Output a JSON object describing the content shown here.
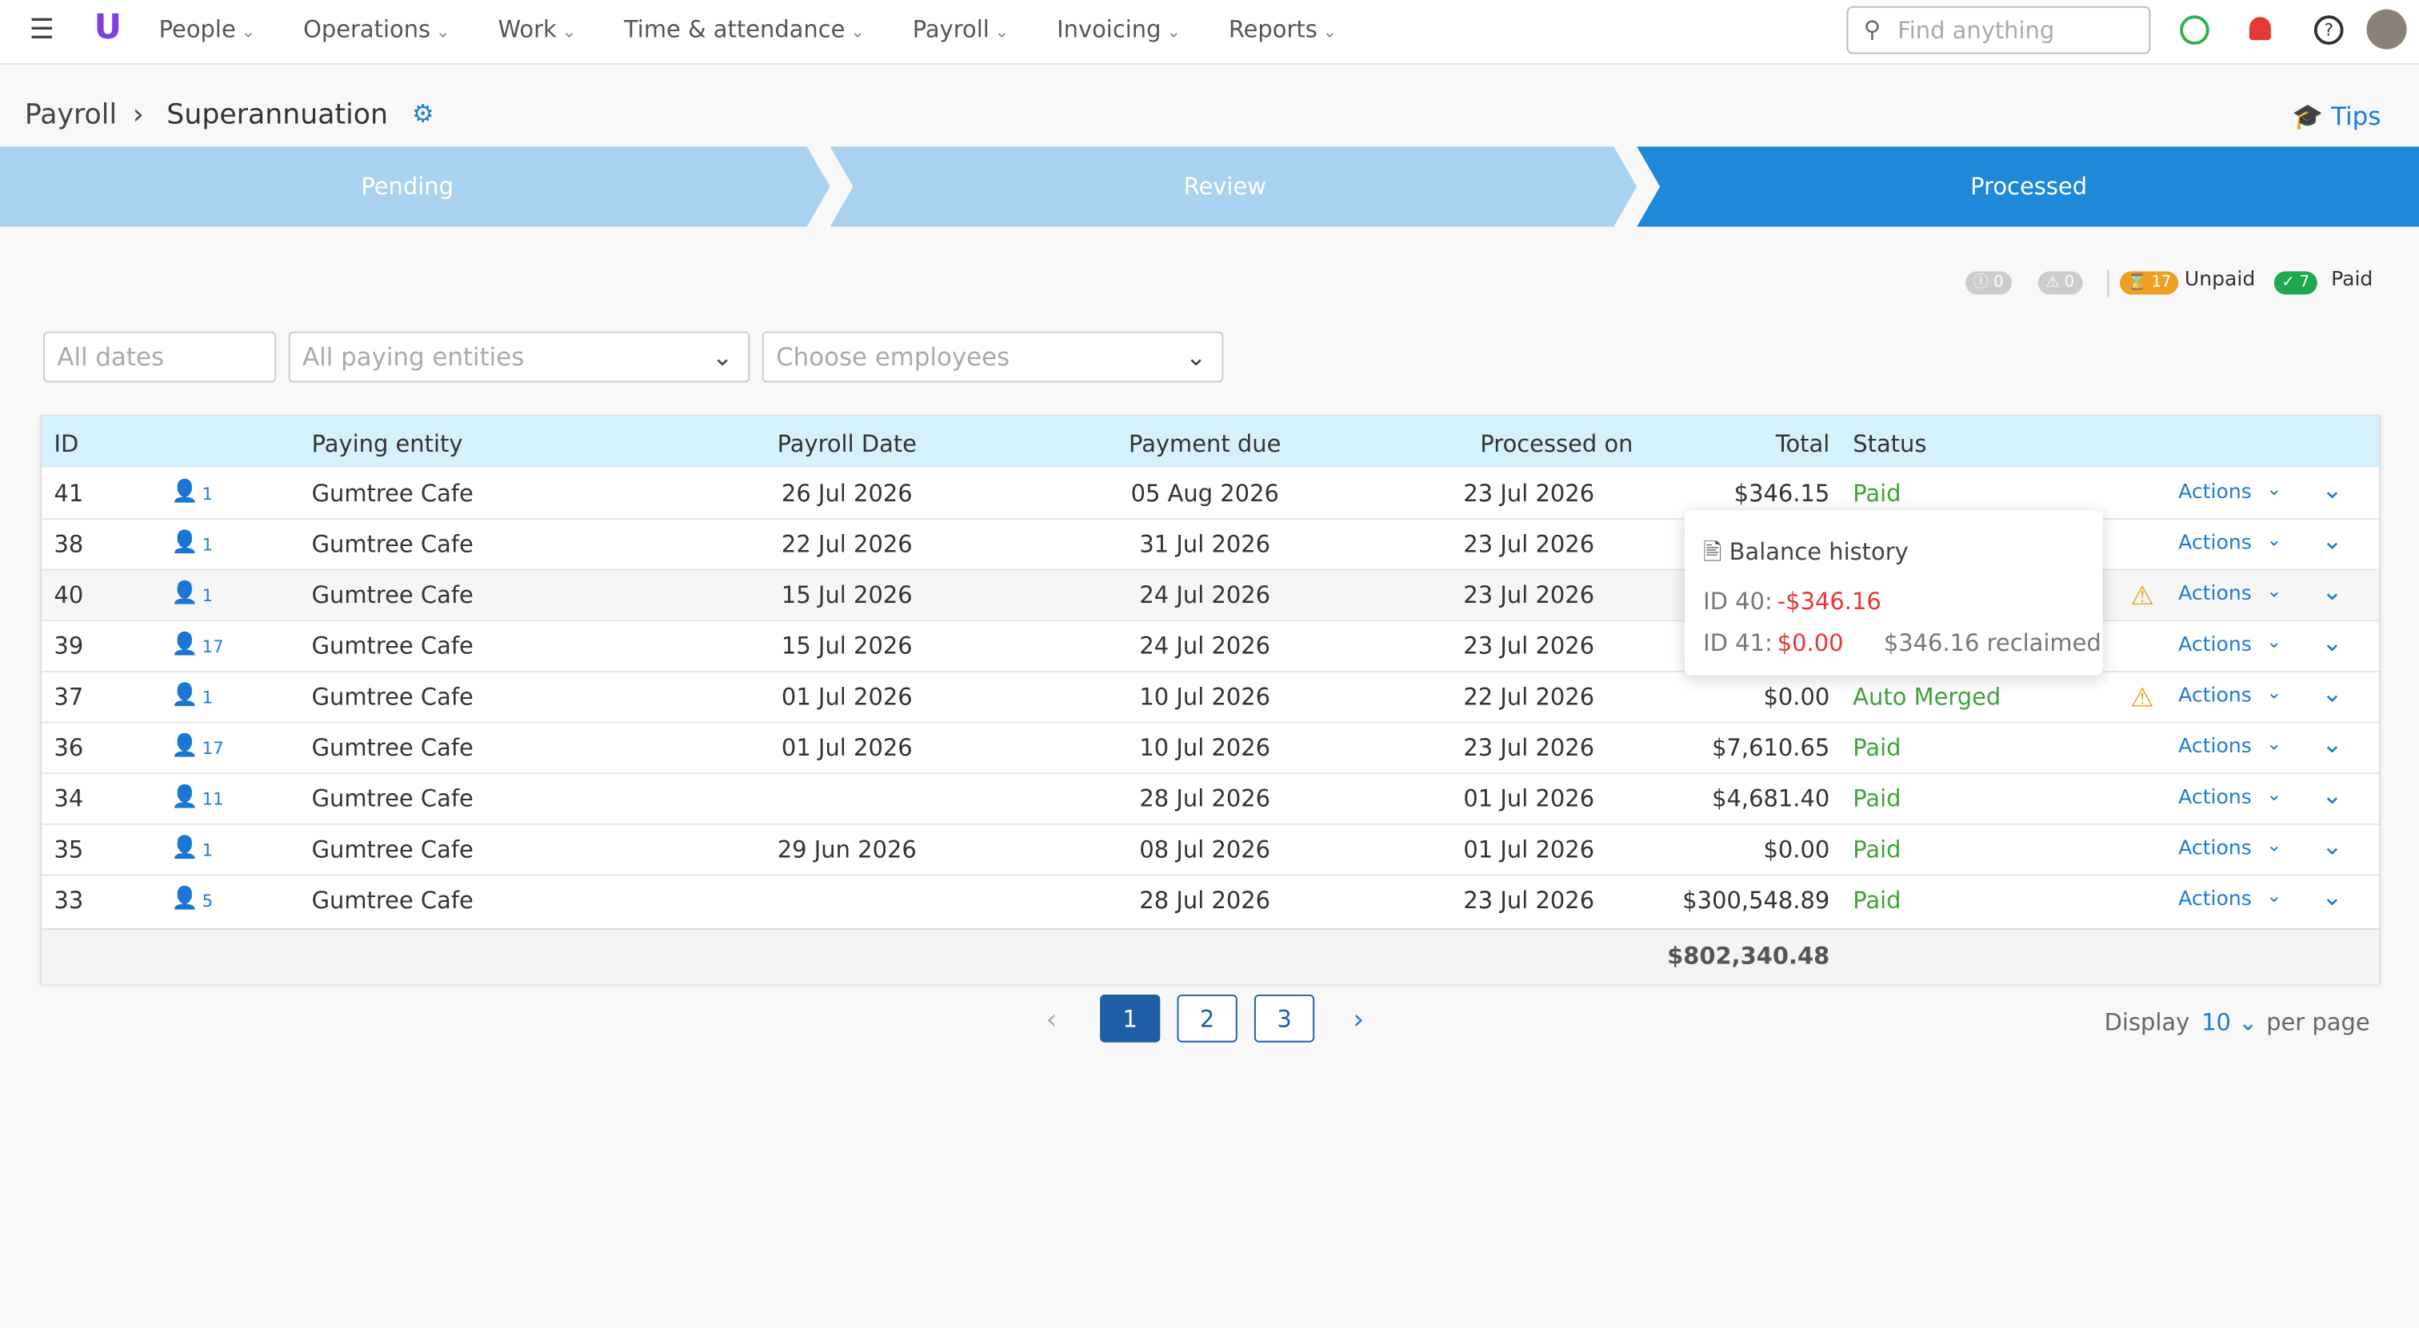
{
  "nav": {
    "items": [
      "People",
      "Operations",
      "Work",
      "Time & attendance",
      "Payroll",
      "Invoicing",
      "Reports"
    ],
    "search_placeholder": "Find anything"
  },
  "breadcrumb": {
    "parent": "Payroll",
    "current": "Superannuation",
    "tips": "Tips"
  },
  "steps": [
    "Pending",
    "Review",
    "Processed"
  ],
  "summary": {
    "info_count": 0,
    "warning_count": 0,
    "unpaid_count": 17,
    "unpaid_label": "Unpaid",
    "paid_count": 7,
    "paid_label": "Paid"
  },
  "filters": {
    "dates": "All dates",
    "entities": "All paying entities",
    "employees": "Choose employees"
  },
  "table": {
    "columns": [
      "ID",
      "Paying entity",
      "Payroll Date",
      "Payment due",
      "Processed on",
      "Total",
      "Status"
    ],
    "actions_label": "Actions",
    "rows": [
      {
        "id": 41,
        "employees": 1,
        "entity": "Gumtree Cafe",
        "payroll_date": "26 Jul 2026",
        "payment_due": "05 Aug 2026",
        "processed_on": "23 Jul 2026",
        "total": "$346.15",
        "status": "Paid",
        "warning": false
      },
      {
        "id": 38,
        "employees": 1,
        "entity": "Gumtree Cafe",
        "payroll_date": "22 Jul 2026",
        "payment_due": "31 Jul 2026",
        "processed_on": "23 Jul 2026",
        "total": null,
        "status": null,
        "warning": false
      },
      {
        "id": 40,
        "employees": 1,
        "entity": "Gumtree Cafe",
        "payroll_date": "15 Jul 2026",
        "payment_due": "24 Jul 2026",
        "processed_on": "23 Jul 2026",
        "total": null,
        "status": null,
        "warning": true
      },
      {
        "id": 39,
        "employees": 17,
        "entity": "Gumtree Cafe",
        "payroll_date": "15 Jul 2026",
        "payment_due": "24 Jul 2026",
        "processed_on": "23 Jul 2026",
        "total": null,
        "status": null,
        "warning": false
      },
      {
        "id": 37,
        "employees": 1,
        "entity": "Gumtree Cafe",
        "payroll_date": "01 Jul 2026",
        "payment_due": "10 Jul 2026",
        "processed_on": "22 Jul 2026",
        "total": "$0.00",
        "status": "Auto Merged",
        "warning": true
      },
      {
        "id": 36,
        "employees": 17,
        "entity": "Gumtree Cafe",
        "payroll_date": "01 Jul 2026",
        "payment_due": "10 Jul 2026",
        "processed_on": "23 Jul 2026",
        "total": "$7,610.65",
        "status": "Paid",
        "warning": false
      },
      {
        "id": 34,
        "employees": 11,
        "entity": "Gumtree Cafe",
        "payroll_date": null,
        "payment_due": "28 Jul 2026",
        "processed_on": "01 Jul 2026",
        "total": "$4,681.40",
        "status": "Paid",
        "warning": false
      },
      {
        "id": 35,
        "employees": 1,
        "entity": "Gumtree Cafe",
        "payroll_date": "29 Jun 2026",
        "payment_due": "08 Jul 2026",
        "processed_on": "01 Jul 2026",
        "total": "$0.00",
        "status": "Paid",
        "warning": false
      },
      {
        "id": 33,
        "employees": 5,
        "entity": "Gumtree Cafe",
        "payroll_date": null,
        "payment_due": "28 Jul 2026",
        "processed_on": "23 Jul 2026",
        "total": "$300,548.89",
        "status": "Paid",
        "warning": false
      }
    ],
    "grand_total": "$802,340.48"
  },
  "tooltip": {
    "title": "Balance history",
    "lines": [
      {
        "label": "ID 40:",
        "amount": "-$346.16"
      },
      {
        "label": "ID 41:",
        "amount": "$0.00",
        "note": "$346.16 reclaimed"
      }
    ]
  },
  "pagination": {
    "pages": [
      1,
      2,
      3
    ],
    "current": 1,
    "display_label": "Display",
    "per_page": 10,
    "per_page_suffix": "per page"
  }
}
